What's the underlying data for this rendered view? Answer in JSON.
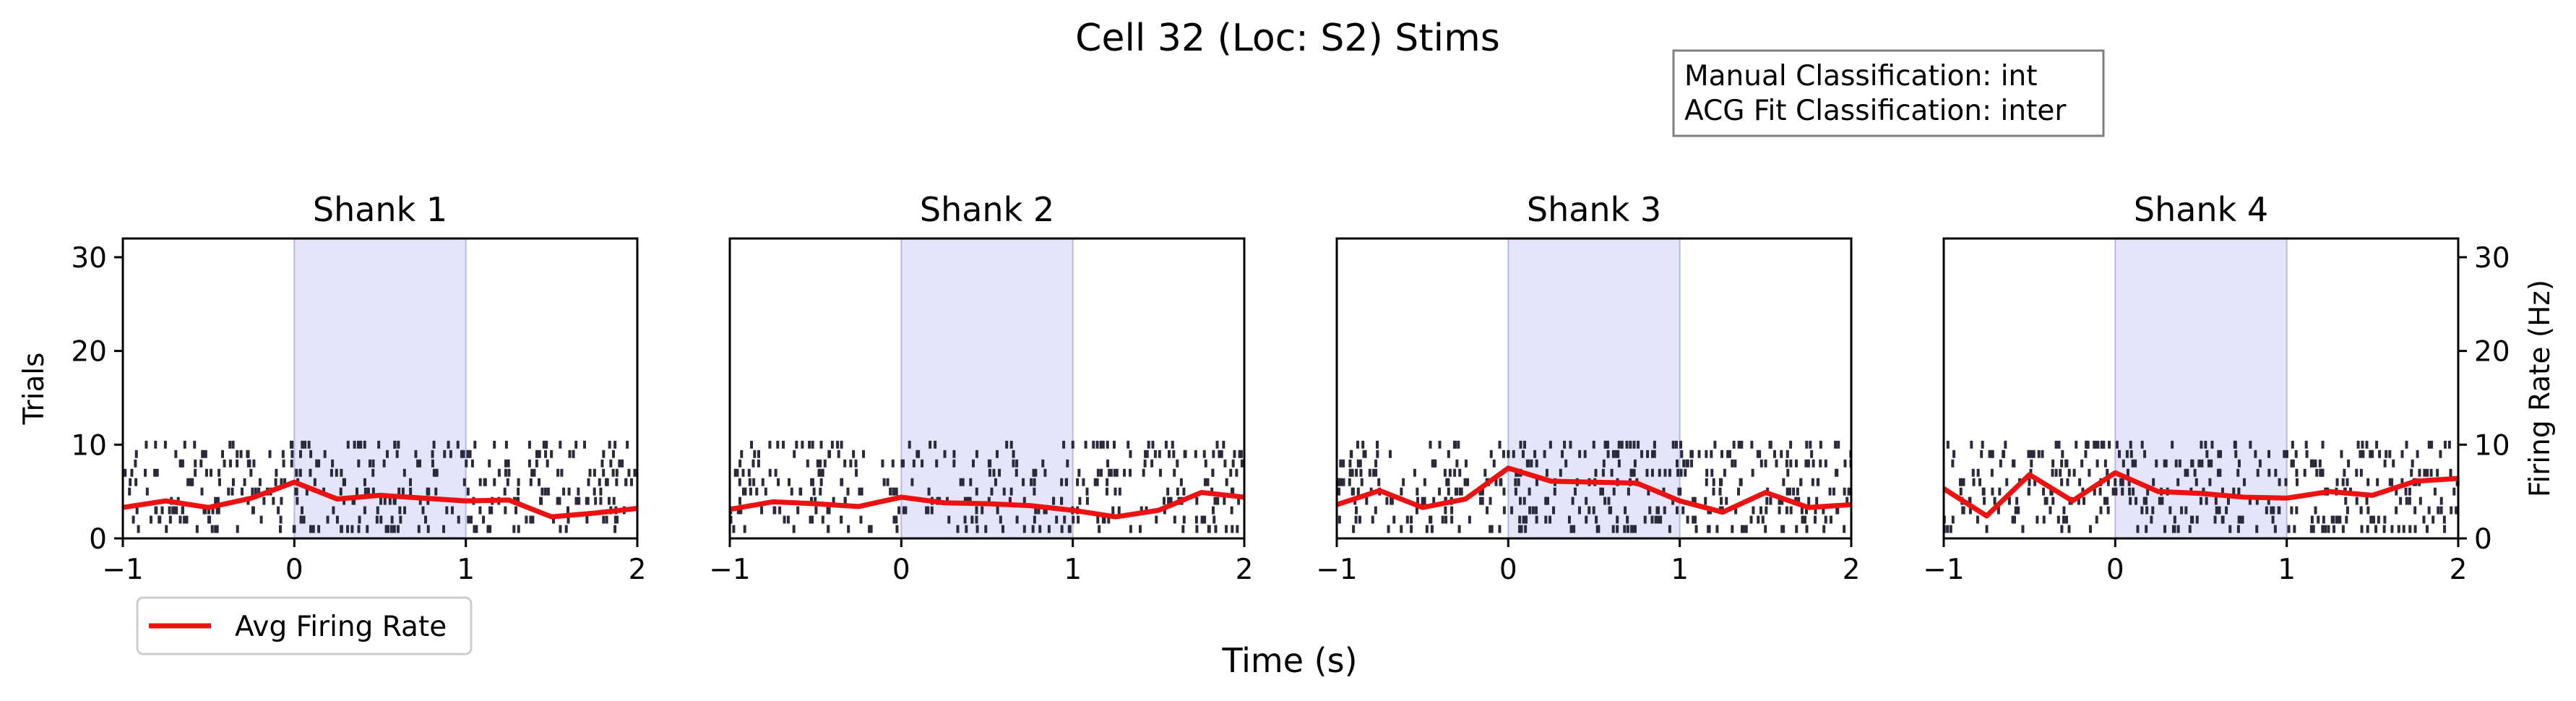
{
  "figure": {
    "title": "Cell 32 (Loc: S2) Stims",
    "xlabel": "Time (s)",
    "classification_box": {
      "line1": "Manual Classification: int",
      "line2": "ACG Fit Classification: inter"
    },
    "legend": {
      "label": "Avg Firing Rate",
      "color": "#ee1111"
    }
  },
  "chart_data": {
    "type": "raster",
    "xlabel": "Time (s)",
    "ylabel_left": "Trials",
    "ylabel_right": "Firing Rate (Hz)",
    "xlim": [
      -1,
      2
    ],
    "ylim": [
      0,
      32
    ],
    "xticks": [
      "−1",
      "0",
      "1",
      "2"
    ],
    "yticks": [
      "0",
      "10",
      "20",
      "30"
    ],
    "stim_window": [
      0,
      1
    ],
    "stim_color": "#e4e4fb",
    "spike_color": "#2a2a3a",
    "rate_color": "#ee1111",
    "trials": 10,
    "panels": [
      {
        "title": "Shank 1",
        "rate_x": [
          -1,
          -0.75,
          -0.5,
          -0.25,
          0,
          0.25,
          0.5,
          0.75,
          1,
          1.25,
          1.5,
          1.75,
          2
        ],
        "rate_y": [
          3.3,
          4.0,
          3.3,
          4.3,
          6.0,
          4.2,
          4.6,
          4.3,
          4.0,
          4.1,
          2.3,
          2.7,
          3.2
        ]
      },
      {
        "title": "Shank 2",
        "rate_x": [
          -1,
          -0.75,
          -0.5,
          -0.25,
          0,
          0.25,
          0.5,
          0.75,
          1,
          1.25,
          1.5,
          1.75,
          2
        ],
        "rate_y": [
          3.1,
          3.9,
          3.7,
          3.4,
          4.4,
          3.8,
          3.7,
          3.5,
          3.0,
          2.3,
          3.0,
          4.9,
          4.4
        ]
      },
      {
        "title": "Shank 3",
        "rate_x": [
          -1,
          -0.75,
          -0.5,
          -0.25,
          0,
          0.25,
          0.5,
          0.75,
          1,
          1.25,
          1.5,
          1.75,
          2
        ],
        "rate_y": [
          3.6,
          5.1,
          3.3,
          4.2,
          7.5,
          6.1,
          6.0,
          5.9,
          4.0,
          2.8,
          4.9,
          3.3,
          3.6
        ]
      },
      {
        "title": "Shank 4",
        "rate_x": [
          -1,
          -0.75,
          -0.5,
          -0.25,
          0,
          0.25,
          0.5,
          0.75,
          1,
          1.25,
          1.5,
          1.75,
          2
        ],
        "rate_y": [
          5.3,
          2.4,
          6.8,
          4.0,
          7.0,
          5.0,
          4.8,
          4.4,
          4.3,
          5.0,
          4.6,
          6.1,
          6.4
        ]
      }
    ]
  }
}
